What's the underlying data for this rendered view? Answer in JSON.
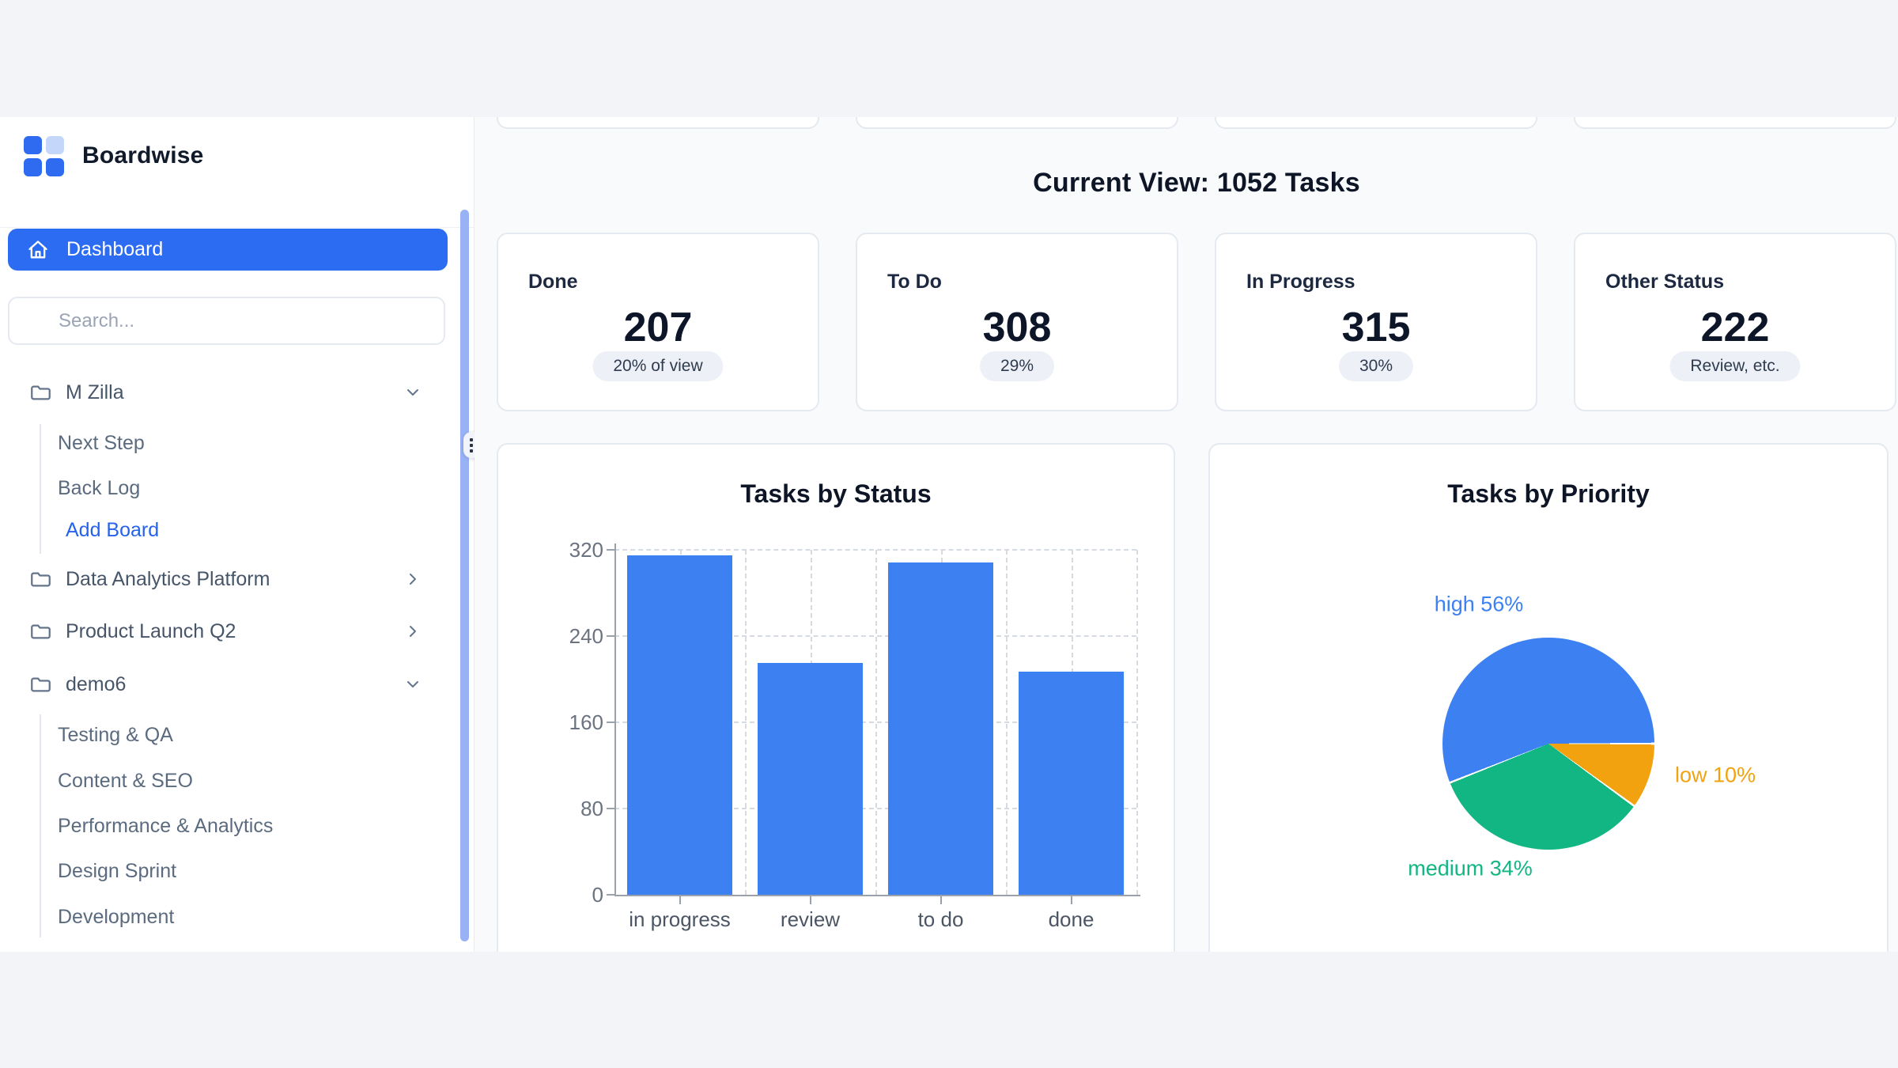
{
  "brand": {
    "name": "Boardwise"
  },
  "colors": {
    "accent_blue": "#2c6cf2",
    "chart_blue": "#3c80f2",
    "chart_green": "#12b683",
    "chart_orange": "#f2a20e",
    "scrollbar_thumb": "#99b2f6",
    "link_blue": "#2563eb"
  },
  "sidebar": {
    "dashboard_label": "Dashboard",
    "search_placeholder": "Search...",
    "projects": [
      {
        "label": "M Zilla",
        "expanded": true
      },
      {
        "label": "Data Analytics Platform",
        "expanded": false
      },
      {
        "label": "Product Launch Q2",
        "expanded": false
      },
      {
        "label": "demo6",
        "expanded": true
      }
    ],
    "mzilla_children": [
      "Next Step",
      "Back Log"
    ],
    "mzilla_action": "Add Board",
    "demo6_children": [
      "Testing & QA",
      "Content & SEO",
      "Performance & Analytics",
      "Design Sprint",
      "Development"
    ]
  },
  "main": {
    "heading": "Current View: 1052 Tasks",
    "stats": [
      {
        "label": "Done",
        "value": "207",
        "badge": "20% of view"
      },
      {
        "label": "To Do",
        "value": "308",
        "badge": "29%"
      },
      {
        "label": "In Progress",
        "value": "315",
        "badge": "30%"
      },
      {
        "label": "Other Status",
        "value": "222",
        "badge": "Review, etc."
      }
    ]
  },
  "chart_data": [
    {
      "type": "bar",
      "title": "Tasks by Status",
      "categories": [
        "in progress",
        "review",
        "to do",
        "done"
      ],
      "values": [
        315,
        215,
        308,
        207
      ],
      "xlabel": "",
      "ylabel": "",
      "ylim": [
        0,
        320
      ],
      "yticks": [
        0,
        80,
        160,
        240,
        320
      ],
      "bar_color": "#3c80f2",
      "grid": "dashed-both",
      "legend": "none"
    },
    {
      "type": "pie",
      "title": "Tasks by Priority",
      "slices": [
        {
          "label": "high",
          "pct": 56,
          "color": "#3c80f2"
        },
        {
          "label": "medium",
          "pct": 34,
          "color": "#12b683"
        },
        {
          "label": "low",
          "pct": 10,
          "color": "#f2a20e"
        }
      ],
      "start_angle": "east",
      "direction": "ccw",
      "label_format": "{label} {pct}%",
      "legend": "none"
    }
  ]
}
